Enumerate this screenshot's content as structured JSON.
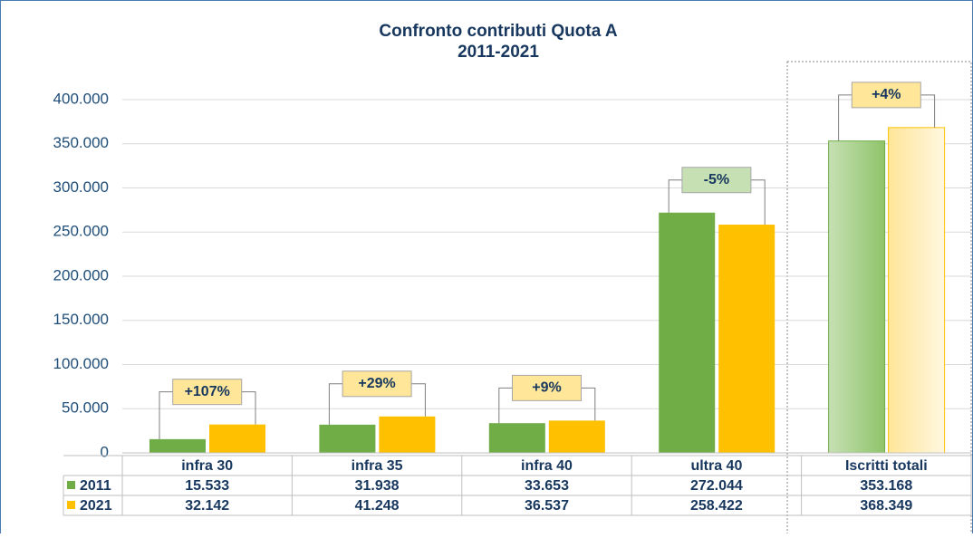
{
  "chart_data": {
    "type": "bar",
    "title": "Confronto contributi Quota A",
    "subtitle": "2011-2021",
    "categories": [
      "infra 30",
      "infra 35",
      "infra 40",
      "ultra 40",
      "Iscritti totali"
    ],
    "series": [
      {
        "name": "2011",
        "color": "#70ad47",
        "values": [
          15533,
          31938,
          33653,
          272044,
          353168
        ],
        "value_labels": [
          "15.533",
          "31.938",
          "33.653",
          "272.044",
          "353.168"
        ]
      },
      {
        "name": "2021",
        "color": "#ffc000",
        "values": [
          32142,
          41248,
          36537,
          258422,
          368349
        ],
        "value_labels": [
          "32.142",
          "41.248",
          "36.537",
          "258.422",
          "368.349"
        ]
      }
    ],
    "annotations": [
      "+107%",
      "+29%",
      "+9%",
      "-5%",
      "+4%"
    ],
    "ylim": [
      0,
      400000
    ],
    "yticks": [
      0,
      {
        "value": 50000,
        "label": "50.000"
      },
      {
        "value": 100000,
        "label": "100.000"
      },
      {
        "value": 150000,
        "label": "150.000"
      },
      {
        "value": 200000,
        "label": "200.000"
      },
      {
        "value": 250000,
        "label": "250.000"
      },
      {
        "value": 300000,
        "label": "300.000"
      },
      {
        "value": 350000,
        "label": "350.000"
      },
      {
        "value": 400000,
        "label": "400.000"
      }
    ],
    "grid": true
  }
}
